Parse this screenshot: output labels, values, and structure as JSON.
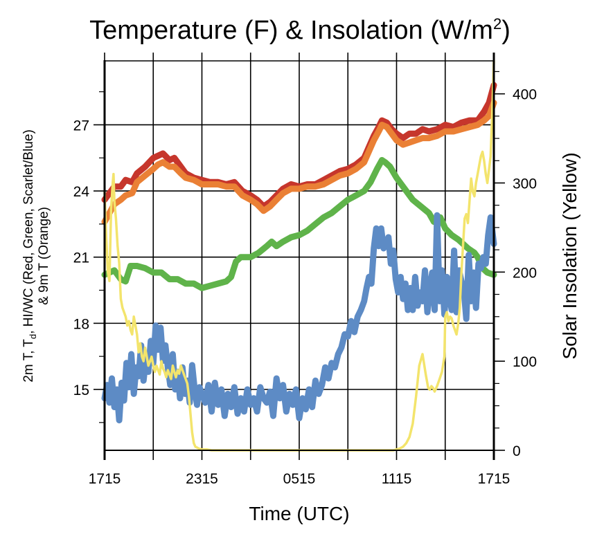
{
  "chart_data": {
    "type": "line",
    "title": "Temperature (F) & Insolation (W/m²)",
    "title_base": "Temperature (F) & Insolation (W/m",
    "title_sup": "2",
    "title_tail": ")",
    "xlabel": "Time (UTC)",
    "ylabel_left_line1": "2m T, Tₐ, HI/WC (Red, Green, Scarlet/Blue)",
    "ylabel_left_parts": [
      "2m T, T",
      "d",
      ", HI/WC (Red, Green, Scarlet/Blue)"
    ],
    "ylabel_left_line2": "& 9m T (Orange)",
    "ylabel_right": "Solar Insolation (Yellow)",
    "x_range_hours": [
      0,
      24
    ],
    "x_ticks": [
      {
        "h": 0,
        "label": "1715"
      },
      {
        "h": 3,
        "label": ""
      },
      {
        "h": 6,
        "label": "2315"
      },
      {
        "h": 9,
        "label": ""
      },
      {
        "h": 12,
        "label": "0515"
      },
      {
        "h": 15,
        "label": ""
      },
      {
        "h": 18,
        "label": "1115"
      },
      {
        "h": 21,
        "label": ""
      },
      {
        "h": 24,
        "label": "1715"
      }
    ],
    "y_left_range": [
      12.24,
      29.9
    ],
    "y_left_ticks": [
      15,
      18,
      21,
      24,
      27
    ],
    "y_left_minor": [
      13.5,
      16.5,
      19.5,
      22.5,
      25.5,
      28.5
    ],
    "y_right_range": [
      0,
      437
    ],
    "y_right_ticks": [
      0,
      100,
      200,
      300,
      400
    ],
    "y_right_minor": [
      25,
      50,
      75,
      125,
      150,
      175,
      225,
      250,
      275,
      325,
      350,
      375,
      425
    ],
    "grid": true,
    "colors": {
      "red": "#C6362C",
      "orange": "#EA8035",
      "green": "#5FB34A",
      "blue": "#5D8BC5",
      "yellow": "#F3E46C",
      "axis": "#000000"
    },
    "series": [
      {
        "name": "2m T (Red)",
        "axis": "left",
        "color_key": "red",
        "width": 9,
        "x": [
          0,
          0.3,
          0.6,
          1,
          1.3,
          1.7,
          2,
          2.5,
          3,
          3.3,
          3.6,
          4,
          4.3,
          4.7,
          5,
          5.5,
          6,
          6.5,
          7,
          7.5,
          8,
          8.5,
          9,
          9.4,
          9.8,
          10.2,
          10.6,
          11,
          11.5,
          12,
          12.5,
          13,
          13.5,
          14,
          14.5,
          15,
          15.5,
          16,
          16.3,
          16.6,
          16.9,
          17.1,
          17.4,
          17.7,
          18,
          18.4,
          18.8,
          19.2,
          19.6,
          20,
          20.5,
          21,
          21.5,
          22,
          22.5,
          23,
          23.4,
          23.7,
          24
        ],
        "y": [
          23.6,
          23.9,
          24.2,
          24.2,
          24.5,
          24.4,
          24.8,
          25.1,
          25.5,
          25.6,
          25.7,
          25.4,
          25.5,
          25.1,
          24.8,
          24.6,
          24.5,
          24.4,
          24.4,
          24.3,
          24.4,
          24.0,
          23.8,
          23.6,
          23.3,
          23.5,
          23.8,
          24.1,
          24.3,
          24.2,
          24.3,
          24.3,
          24.5,
          24.7,
          24.9,
          25.0,
          25.2,
          25.5,
          26.0,
          26.5,
          26.9,
          27.2,
          27.1,
          26.8,
          26.6,
          26.4,
          26.6,
          26.6,
          26.8,
          26.7,
          26.8,
          27.0,
          26.9,
          27.1,
          27.2,
          27.2,
          27.6,
          28.0,
          28.8
        ]
      },
      {
        "name": "9m T (Orange)",
        "axis": "left",
        "color_key": "orange",
        "width": 9,
        "x": [
          0,
          0.3,
          0.6,
          1,
          1.3,
          1.7,
          2,
          2.5,
          3,
          3.3,
          3.6,
          4,
          4.3,
          4.7,
          5,
          5.5,
          6,
          6.5,
          7,
          7.5,
          8,
          8.5,
          9,
          9.4,
          9.8,
          10.2,
          10.6,
          11,
          11.5,
          12,
          12.5,
          13,
          13.5,
          14,
          14.5,
          15,
          15.5,
          16,
          16.3,
          16.6,
          16.9,
          17.1,
          17.4,
          17.7,
          18,
          18.4,
          18.8,
          19.2,
          19.6,
          20,
          20.5,
          21,
          21.5,
          22,
          22.5,
          23,
          23.4,
          23.7,
          24
        ],
        "y": [
          22.6,
          23.0,
          23.4,
          23.6,
          23.8,
          23.9,
          24.4,
          24.7,
          25.0,
          25.2,
          25.3,
          25.1,
          25.1,
          24.8,
          24.6,
          24.5,
          24.3,
          24.3,
          24.3,
          24.2,
          24.2,
          23.8,
          23.6,
          23.4,
          23.1,
          23.3,
          23.6,
          23.9,
          24.1,
          24.1,
          24.2,
          24.2,
          24.3,
          24.5,
          24.7,
          24.8,
          25.0,
          25.3,
          25.8,
          26.3,
          26.7,
          27.0,
          26.9,
          26.6,
          26.3,
          26.1,
          26.2,
          26.3,
          26.4,
          26.4,
          26.5,
          26.7,
          26.7,
          26.8,
          26.9,
          27.0,
          27.2,
          27.4,
          28.0
        ]
      },
      {
        "name": "Td (Green)",
        "axis": "left",
        "color_key": "green",
        "width": 9,
        "x": [
          0,
          0.3,
          0.6,
          1,
          1.3,
          1.6,
          2,
          2.5,
          3,
          3.5,
          4,
          4.5,
          5,
          5.5,
          6,
          6.5,
          7,
          7.5,
          7.8,
          8.1,
          8.4,
          9,
          9.5,
          10,
          10.3,
          10.6,
          11,
          11.5,
          12,
          12.5,
          13,
          13.5,
          14,
          14.5,
          15,
          15.5,
          16,
          16.4,
          16.8,
          17.1,
          17.3,
          17.6,
          18,
          18.5,
          19,
          19.5,
          20,
          20.3,
          20.7,
          21,
          21.4,
          21.8,
          22.1,
          22.4,
          22.6,
          22.8,
          23,
          23.3,
          23.6,
          24
        ],
        "y": [
          20.2,
          20.3,
          20.4,
          20.0,
          19.9,
          20.6,
          20.6,
          20.5,
          20.3,
          20.3,
          20.0,
          20.0,
          19.8,
          19.8,
          19.6,
          19.7,
          19.8,
          19.9,
          20.1,
          20.8,
          21.0,
          21.0,
          21.2,
          21.5,
          21.7,
          21.5,
          21.7,
          21.9,
          22.0,
          22.2,
          22.5,
          22.8,
          23.0,
          23.3,
          23.6,
          23.8,
          24.0,
          24.4,
          25.0,
          25.4,
          25.3,
          25.1,
          24.6,
          24.1,
          23.6,
          23.3,
          23.0,
          22.6,
          22.8,
          22.3,
          22.0,
          21.8,
          21.6,
          21.4,
          21.3,
          21.2,
          21.0,
          20.5,
          20.3,
          20.2
        ]
      },
      {
        "name": "HI/WC (Blue)",
        "axis": "left",
        "color_key": "blue",
        "width": 9,
        "x": [
          0,
          0.15,
          0.3,
          0.45,
          0.6,
          0.75,
          0.9,
          1.05,
          1.2,
          1.35,
          1.5,
          1.65,
          1.8,
          1.95,
          2.1,
          2.25,
          2.4,
          2.55,
          2.7,
          2.85,
          3.0,
          3.15,
          3.3,
          3.45,
          3.6,
          3.75,
          3.9,
          4.05,
          4.2,
          4.35,
          4.5,
          4.65,
          4.8,
          4.95,
          5.1,
          5.25,
          5.4,
          5.55,
          5.7,
          5.85,
          6.0,
          6.2,
          6.4,
          6.6,
          6.8,
          7.0,
          7.2,
          7.4,
          7.6,
          7.8,
          8.0,
          8.2,
          8.4,
          8.6,
          8.8,
          9.0,
          9.2,
          9.4,
          9.6,
          9.8,
          10.0,
          10.2,
          10.4,
          10.6,
          10.8,
          11.0,
          11.2,
          11.4,
          11.6,
          11.8,
          12.0,
          12.2,
          12.4,
          12.6,
          12.8,
          13.0,
          13.2,
          13.4,
          13.6,
          13.8,
          14.0,
          14.2,
          14.4,
          14.6,
          14.8,
          15.0,
          15.2,
          15.4,
          15.6,
          15.8,
          16.0,
          16.15,
          16.3,
          16.45,
          16.6,
          16.75,
          16.9,
          17.05,
          17.2,
          17.35,
          17.5,
          17.65,
          17.8,
          17.95,
          18.1,
          18.25,
          18.4,
          18.55,
          18.7,
          18.85,
          19.0,
          19.15,
          19.3,
          19.45,
          19.6,
          19.75,
          19.9,
          20.05,
          20.2,
          20.35,
          20.5,
          20.65,
          20.8,
          20.95,
          21.1,
          21.25,
          21.4,
          21.55,
          21.7,
          21.85,
          22.0,
          22.15,
          22.3,
          22.45,
          22.6,
          22.75,
          22.9,
          23.05,
          23.2,
          23.35,
          23.5,
          23.65,
          23.8,
          24
        ],
        "y": [
          14.6,
          15.2,
          14.4,
          15.5,
          14.2,
          15.0,
          13.6,
          15.3,
          14.5,
          16.2,
          15.1,
          16.6,
          14.8,
          16.0,
          15.6,
          17.0,
          15.4,
          16.4,
          15.8,
          17.2,
          16.2,
          17.9,
          16.8,
          17.8,
          16.3,
          17.0,
          16.0,
          15.2,
          16.6,
          15.0,
          15.8,
          14.6,
          16.0,
          14.8,
          15.4,
          14.4,
          16.1,
          15.0,
          14.3,
          15.1,
          14.8,
          14.4,
          15.2,
          14.0,
          15.3,
          14.3,
          15.0,
          13.8,
          14.8,
          14.2,
          15.1,
          13.9,
          14.6,
          14.0,
          15.0,
          14.3,
          14.6,
          14.0,
          15.1,
          14.6,
          14.4,
          14.9,
          13.8,
          15.5,
          14.6,
          15.2,
          14.0,
          14.8,
          14.3,
          15.0,
          13.7,
          14.6,
          14.1,
          15.0,
          14.2,
          15.4,
          14.8,
          15.2,
          16.0,
          15.5,
          16.2,
          16.0,
          16.6,
          16.9,
          17.5,
          17.4,
          18.1,
          17.6,
          18.3,
          18.6,
          19.0,
          19.6,
          20.1,
          19.8,
          21.4,
          22.3,
          21.5,
          22.3,
          21.4,
          21.6,
          21.9,
          20.7,
          21.3,
          20.0,
          19.4,
          20.1,
          19.1,
          19.8,
          18.6,
          19.6,
          18.6,
          20.1,
          18.8,
          19.4,
          19.0,
          20.4,
          18.5,
          19.6,
          20.3,
          18.6,
          22.9,
          19.0,
          20.4,
          18.4,
          20.1,
          19.3,
          18.6,
          21.3,
          18.5,
          20.4,
          19.9,
          19.5,
          18.2,
          21.1,
          19.0,
          20.3,
          18.7,
          20.7,
          20.5,
          21.0,
          20.7,
          22.0,
          22.8,
          21.6
        ]
      },
      {
        "name": "Solar Insolation (Yellow)",
        "axis": "right",
        "color_key": "yellow",
        "width": 3.5,
        "x": [
          0,
          0.1,
          0.2,
          0.3,
          0.4,
          0.5,
          0.55,
          0.6,
          0.7,
          0.8,
          0.9,
          1.0,
          1.1,
          1.2,
          1.3,
          1.4,
          1.5,
          1.6,
          1.7,
          1.8,
          1.9,
          2.0,
          2.1,
          2.2,
          2.3,
          2.4,
          2.5,
          2.6,
          2.7,
          2.8,
          2.9,
          3.0,
          3.1,
          3.2,
          3.3,
          3.4,
          3.5,
          3.6,
          3.7,
          3.8,
          3.9,
          4.0,
          4.1,
          4.2,
          4.3,
          4.4,
          4.5,
          4.6,
          4.7,
          4.8,
          4.9,
          5.0,
          5.1,
          5.2,
          5.3,
          5.4,
          5.5,
          5.6,
          5.8,
          6.0,
          6.3,
          6.6,
          7,
          8,
          9,
          10,
          11,
          12,
          13,
          14,
          15,
          16,
          17,
          17.5,
          17.8,
          18.0,
          18.2,
          18.4,
          18.6,
          18.8,
          19.0,
          19.2,
          19.4,
          19.6,
          19.8,
          19.95,
          20.05,
          20.15,
          20.25,
          20.35,
          20.5,
          20.65,
          20.8,
          20.95,
          21.0,
          21.1,
          21.2,
          21.3,
          21.4,
          21.5,
          21.6,
          21.7,
          21.8,
          21.9,
          22.0,
          22.1,
          22.2,
          22.3,
          22.4,
          22.5,
          22.6,
          22.7,
          22.8,
          22.9,
          23.0,
          23.1,
          23.2,
          23.3,
          23.4,
          23.5,
          23.6,
          23.7,
          23.8,
          23.9,
          24.0
        ],
        "y": [
          290,
          240,
          200,
          190,
          270,
          300,
          310,
          280,
          260,
          230,
          210,
          170,
          160,
          155,
          150,
          140,
          145,
          135,
          130,
          150,
          140,
          130,
          110,
          120,
          105,
          100,
          115,
          105,
          95,
          100,
          105,
          95,
          88,
          95,
          90,
          85,
          100,
          92,
          88,
          82,
          90,
          85,
          80,
          95,
          88,
          82,
          90,
          86,
          95,
          90,
          85,
          80,
          75,
          60,
          40,
          20,
          8,
          4,
          2,
          1,
          1,
          0,
          0,
          0,
          0,
          0,
          0,
          0,
          0,
          0,
          0,
          0,
          0,
          0,
          0,
          1,
          2,
          4,
          8,
          15,
          30,
          60,
          95,
          108,
          85,
          70,
          68,
          72,
          70,
          66,
          72,
          80,
          88,
          105,
          150,
          155,
          145,
          150,
          148,
          140,
          135,
          130,
          142,
          160,
          200,
          230,
          260,
          265,
          255,
          280,
          305,
          290,
          285,
          300,
          310,
          320,
          330,
          335,
          325,
          310,
          300,
          315,
          330,
          380,
          437
        ]
      }
    ]
  }
}
